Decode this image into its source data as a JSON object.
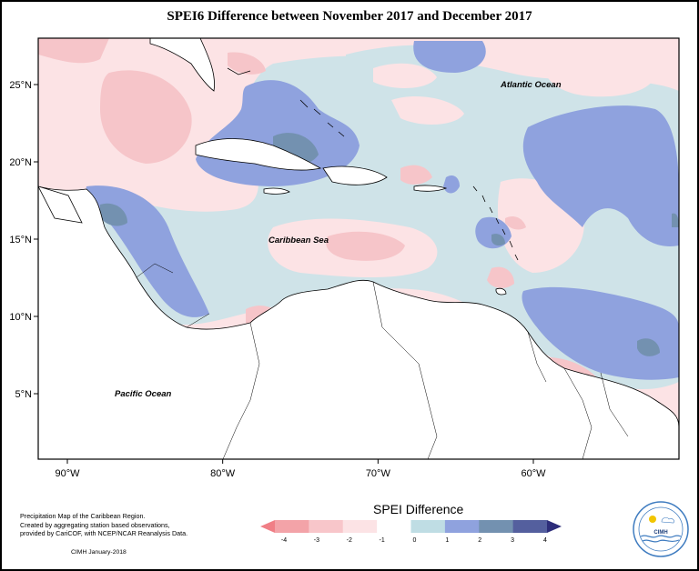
{
  "title": "SPEI6 Difference between November 2017 and December 2017",
  "map": {
    "lat_labels": [
      {
        "text": "25°N",
        "lat": 25
      },
      {
        "text": "20°N",
        "lat": 20
      },
      {
        "text": "15°N",
        "lat": 15
      },
      {
        "text": "10°N",
        "lat": 10
      },
      {
        "text": "5°N",
        "lat": 5
      }
    ],
    "lon_labels": [
      {
        "text": "90°W",
        "lon": -90
      },
      {
        "text": "80°W",
        "lon": -80
      },
      {
        "text": "70°W",
        "lon": -70
      },
      {
        "text": "60°W",
        "lon": -60
      }
    ],
    "ocean_labels": {
      "atlantic": "Atlantic Ocean",
      "caribbean": "Caribbean Sea",
      "pacific": "Pacific Ocean"
    }
  },
  "legend": {
    "title": "SPEI Difference",
    "ticks": [
      "-4",
      "-3",
      "-2",
      "-1",
      "0",
      "1",
      "2",
      "3",
      "4"
    ],
    "colors": [
      "#f07f86",
      "#f3a3a8",
      "#f8c6ca",
      "#fce3e5",
      "#ffffff",
      "#bfdde4",
      "#8fa2de",
      "#7391b0",
      "#545f9e",
      "#2d2d7a"
    ]
  },
  "credits": {
    "line1": "Precipitation Map of the Caribbean Region.",
    "line2": "Created by aggregating station based observations,",
    "line3": "provided by CariCOF, with NCEP/NCAR Reanalysis Data.",
    "date": "CIMH January-2018"
  },
  "logo": {
    "text": "CIMH"
  }
}
